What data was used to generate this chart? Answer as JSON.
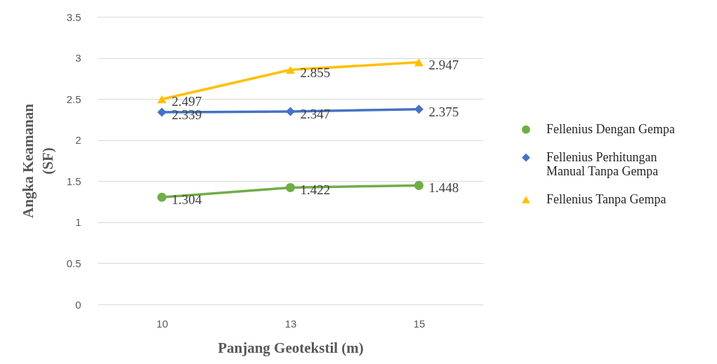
{
  "chart_data": {
    "type": "line",
    "xlabel": "Panjang Geotekstil (m)",
    "ylabel": "Angka Keamanan (SF)",
    "categories": [
      "10",
      "13",
      "15"
    ],
    "series": [
      {
        "name": "Fellenius Dengan Gempa",
        "color": "#70ad47",
        "marker": "circle",
        "values": [
          1.304,
          1.422,
          1.448
        ]
      },
      {
        "name": "Fellenius Perhitungan Manual Tanpa Gempa",
        "color": "#4472c4",
        "marker": "diamond",
        "values": [
          2.339,
          2.347,
          2.375
        ]
      },
      {
        "name": "Fellenius Tanpa Gempa",
        "color": "#ffc000",
        "marker": "triangle",
        "values": [
          2.497,
          2.855,
          2.947
        ]
      }
    ],
    "ylim": [
      0,
      3.5
    ],
    "yticks": [
      0,
      0.5,
      1,
      1.5,
      2,
      2.5,
      3,
      3.5
    ],
    "grid": "y",
    "legend": "right",
    "line_style": "solid",
    "data_labels": true
  }
}
